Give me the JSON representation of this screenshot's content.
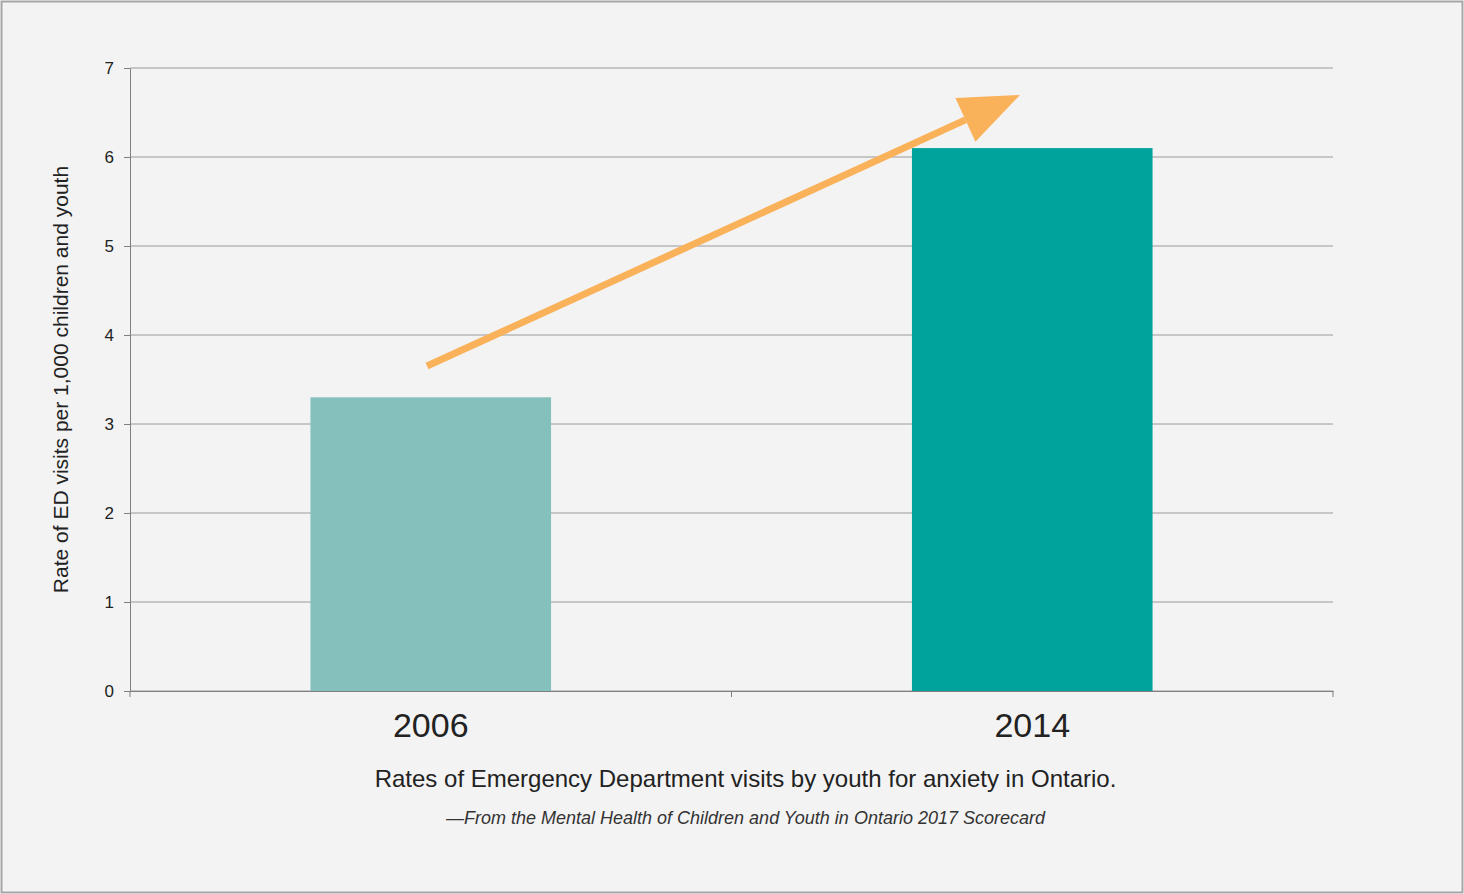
{
  "chart_data": {
    "type": "bar",
    "categories": [
      "2006",
      "2014"
    ],
    "values": [
      3.3,
      6.1
    ],
    "colors": [
      "#86c0bc",
      "#00a39b"
    ],
    "ylim": [
      0,
      7
    ],
    "yticks": [
      0,
      1,
      2,
      3,
      4,
      5,
      6,
      7
    ],
    "grid": true,
    "y_label": "Rate of ED visits per 1,000 children and youth",
    "x_label": "Rates of Emergency Department visits by youth for anxiety in Ontario.",
    "source": "—From the Mental Health of Children and Youth in Ontario 2017 Scorecard"
  }
}
